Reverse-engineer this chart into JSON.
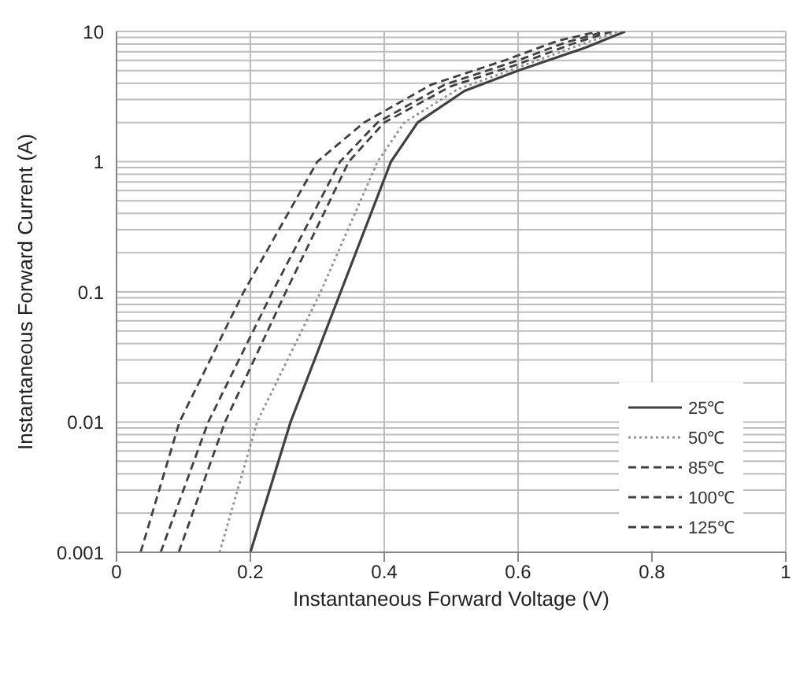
{
  "chart_data": {
    "type": "line",
    "xlabel": "Instantaneous Forward Voltage (V)",
    "ylabel": "Instantaneous Forward Current (A)",
    "log": "y",
    "grid": true,
    "legend": "right",
    "marker": "none",
    "xlim": [
      0,
      1
    ],
    "xticks": [
      0,
      0.2,
      0.4,
      0.6,
      0.8,
      1
    ],
    "ylim": [
      0.001,
      10
    ],
    "yticks": [
      {
        "value": 0.001,
        "label": "0.001"
      },
      {
        "value": 0.002,
        "label": null
      },
      {
        "value": 0.003,
        "label": null
      },
      {
        "value": 0.004,
        "label": null
      },
      {
        "value": 0.005,
        "label": null
      },
      {
        "value": 0.006,
        "label": null
      },
      {
        "value": 0.007,
        "label": null
      },
      {
        "value": 0.008,
        "label": null
      },
      {
        "value": 0.009,
        "label": null
      },
      {
        "value": 0.01,
        "label": "0.01"
      },
      {
        "value": 0.02,
        "label": null
      },
      {
        "value": 0.03,
        "label": null
      },
      {
        "value": 0.04,
        "label": null
      },
      {
        "value": 0.05,
        "label": null
      },
      {
        "value": 0.06,
        "label": null
      },
      {
        "value": 0.07,
        "label": null
      },
      {
        "value": 0.08,
        "label": null
      },
      {
        "value": 0.09,
        "label": null
      },
      {
        "value": 0.1,
        "label": "0.1"
      },
      {
        "value": 0.2,
        "label": null
      },
      {
        "value": 0.3,
        "label": null
      },
      {
        "value": 0.4,
        "label": null
      },
      {
        "value": 0.5,
        "label": null
      },
      {
        "value": 0.6,
        "label": null
      },
      {
        "value": 0.7,
        "label": null
      },
      {
        "value": 0.8,
        "label": null
      },
      {
        "value": 0.9,
        "label": null
      },
      {
        "value": 1,
        "label": "1"
      },
      {
        "value": 2,
        "label": null
      },
      {
        "value": 3,
        "label": null
      },
      {
        "value": 4,
        "label": null
      },
      {
        "value": 5,
        "label": null
      },
      {
        "value": 6,
        "label": null
      },
      {
        "value": 7,
        "label": null
      },
      {
        "value": 8,
        "label": null
      },
      {
        "value": 9,
        "label": null
      },
      {
        "value": 10,
        "label": "10"
      }
    ],
    "series": [
      {
        "name": "25℃",
        "color": "#404040",
        "line_style": "solid",
        "x": [
          0.2,
          0.26,
          0.335,
          0.41,
          0.45,
          0.52,
          0.6,
          0.7,
          0.76
        ],
        "values": [
          0.001,
          0.01,
          0.1,
          1,
          2,
          3.5,
          5,
          7.5,
          10
        ]
      },
      {
        "name": "50℃",
        "color": "#909090",
        "line_style": "dotted",
        "x": [
          0.154,
          0.21,
          0.305,
          0.39,
          0.43,
          0.51,
          0.6,
          0.69,
          0.75
        ],
        "values": [
          0.001,
          0.01,
          0.1,
          1,
          2,
          3.6,
          5.3,
          7.8,
          10
        ]
      },
      {
        "name": "85℃",
        "color": "#404040",
        "line_style": "dashed",
        "x": [
          0.093,
          0.162,
          0.253,
          0.347,
          0.4,
          0.5,
          0.6,
          0.68,
          0.74
        ],
        "values": [
          0.001,
          0.01,
          0.1,
          1,
          2,
          3.8,
          5.6,
          8,
          10
        ]
      },
      {
        "name": "100℃",
        "color": "#404040",
        "line_style": "dashed",
        "x": [
          0.066,
          0.137,
          0.233,
          0.334,
          0.39,
          0.49,
          0.6,
          0.67,
          0.73
        ],
        "values": [
          0.001,
          0.01,
          0.1,
          1,
          2,
          3.9,
          6,
          8.2,
          10
        ]
      },
      {
        "name": "125℃",
        "color": "#404040",
        "line_style": "dashed",
        "x": [
          0.036,
          0.094,
          0.19,
          0.3,
          0.37,
          0.47,
          0.58,
          0.66,
          0.72
        ],
        "values": [
          0.001,
          0.01,
          0.1,
          1,
          2,
          3.9,
          6,
          8.5,
          10
        ]
      }
    ]
  }
}
